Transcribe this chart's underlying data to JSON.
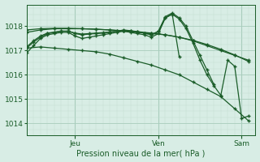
{
  "xlabel": "Pression niveau de la mer( hPa )",
  "bg_color": "#d8ede5",
  "line_color": "#1a5c28",
  "grid_major_color": "#a8ccbc",
  "grid_minor_color": "#c0ddd0",
  "ylim": [
    1013.5,
    1018.9
  ],
  "xlim": [
    0,
    66
  ],
  "yticks": [
    1014,
    1015,
    1016,
    1017,
    1018
  ],
  "xtick_positions": [
    14,
    38,
    62
  ],
  "xtick_labels": [
    "Jeu",
    "Ven",
    "Sam"
  ],
  "vline_positions": [
    14,
    38,
    62
  ],
  "series": [
    {
      "x": [
        0,
        4,
        8,
        12,
        16,
        20,
        24,
        28,
        32,
        36,
        40,
        44,
        48,
        52,
        56,
        60,
        64
      ],
      "y": [
        1017.1,
        1017.15,
        1017.1,
        1017.05,
        1017.0,
        1016.95,
        1016.85,
        1016.7,
        1016.55,
        1016.4,
        1016.2,
        1016.0,
        1015.7,
        1015.4,
        1015.1,
        1014.6,
        1014.1
      ]
    },
    {
      "x": [
        0,
        4,
        8,
        12,
        16,
        20,
        24,
        28,
        32,
        36,
        40,
        44,
        48,
        52,
        56,
        60,
        64
      ],
      "y": [
        1017.75,
        1017.85,
        1017.9,
        1017.9,
        1017.9,
        1017.88,
        1017.85,
        1017.8,
        1017.75,
        1017.7,
        1017.65,
        1017.55,
        1017.4,
        1017.2,
        1017.0,
        1016.8,
        1016.6
      ]
    },
    {
      "x": [
        0,
        4,
        8,
        12,
        16,
        20,
        24,
        28,
        32,
        36,
        40,
        44,
        48,
        52,
        56,
        60,
        64
      ],
      "y": [
        1017.85,
        1017.9,
        1017.92,
        1017.92,
        1017.9,
        1017.88,
        1017.85,
        1017.82,
        1017.78,
        1017.72,
        1017.65,
        1017.55,
        1017.42,
        1017.25,
        1017.05,
        1016.82,
        1016.55
      ]
    },
    {
      "x": [
        0,
        2,
        4,
        6,
        8,
        10,
        12,
        14,
        16,
        18,
        20,
        22,
        24,
        26,
        28,
        30,
        32,
        34,
        36,
        38,
        40,
        42,
        44,
        46,
        48,
        50,
        52,
        54,
        56,
        58,
        60,
        62,
        64
      ],
      "y": [
        1016.9,
        1017.2,
        1017.5,
        1017.65,
        1017.7,
        1017.75,
        1017.75,
        1017.6,
        1017.5,
        1017.55,
        1017.6,
        1017.65,
        1017.7,
        1017.75,
        1017.8,
        1017.75,
        1017.7,
        1017.65,
        1017.55,
        1017.7,
        1018.35,
        1018.5,
        1018.3,
        1017.9,
        1017.3,
        1016.6,
        1016.0,
        1015.55,
        1015.15,
        1016.6,
        1016.35,
        1014.2,
        1014.3
      ]
    },
    {
      "x": [
        0,
        2,
        4,
        6,
        8,
        10,
        12,
        14,
        16,
        18,
        20,
        22,
        24,
        26,
        28,
        30,
        32,
        34,
        36,
        38,
        40,
        42,
        44,
        46,
        48,
        50,
        52,
        54
      ],
      "y": [
        1017.1,
        1017.35,
        1017.55,
        1017.7,
        1017.75,
        1017.8,
        1017.8,
        1017.7,
        1017.65,
        1017.68,
        1017.7,
        1017.72,
        1017.75,
        1017.8,
        1017.85,
        1017.82,
        1017.78,
        1017.72,
        1017.65,
        1017.8,
        1018.4,
        1018.55,
        1018.35,
        1018.0,
        1017.4,
        1016.8,
        1016.2,
        1015.6
      ]
    },
    {
      "x": [
        0,
        2,
        4,
        6,
        8,
        10,
        12,
        14,
        16,
        18,
        20,
        22,
        24,
        26,
        28,
        30,
        32,
        34,
        36,
        38,
        40,
        42,
        44
      ],
      "y": [
        1017.15,
        1017.4,
        1017.6,
        1017.72,
        1017.76,
        1017.8,
        1017.8,
        1017.72,
        1017.68,
        1017.7,
        1017.72,
        1017.74,
        1017.76,
        1017.8,
        1017.82,
        1017.8,
        1017.76,
        1017.72,
        1017.65,
        1017.78,
        1018.35,
        1018.5,
        1016.75
      ]
    }
  ]
}
